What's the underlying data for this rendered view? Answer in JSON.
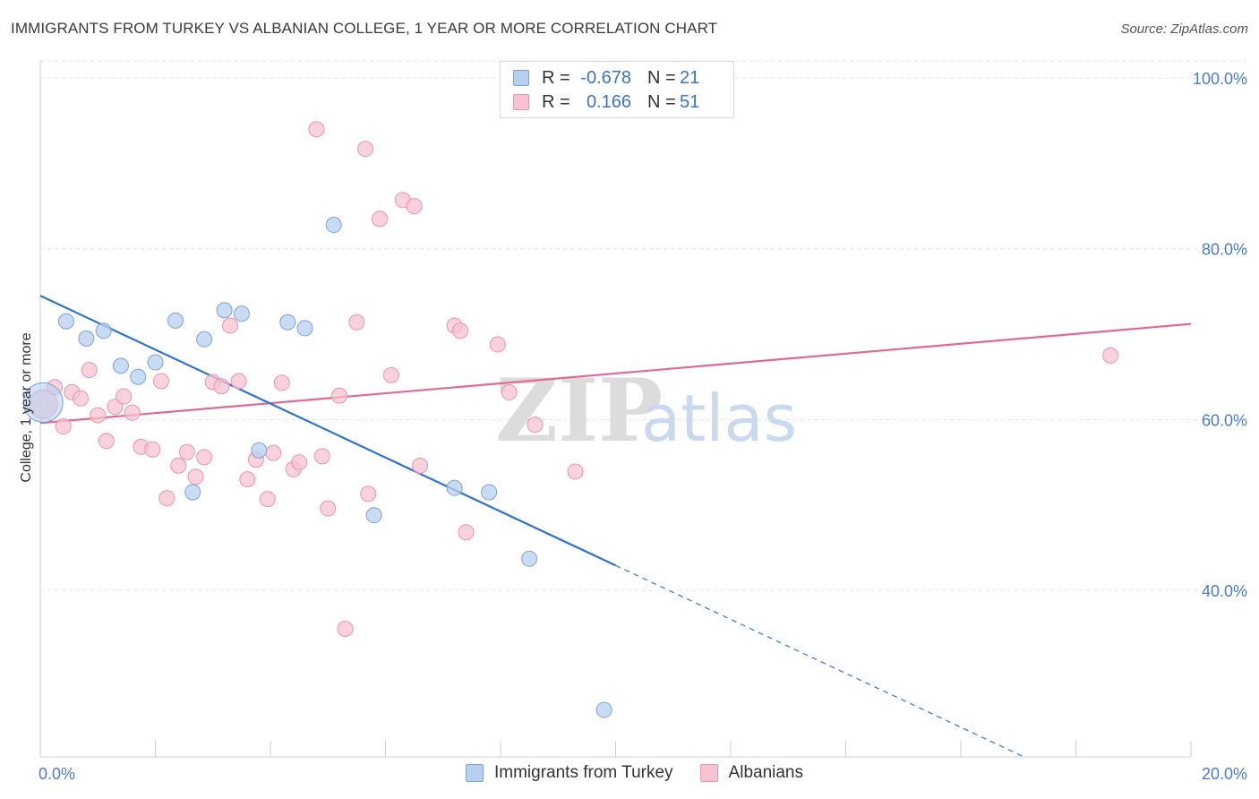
{
  "header": {
    "title": "IMMIGRANTS FROM TURKEY VS ALBANIAN COLLEGE, 1 YEAR OR MORE CORRELATION CHART",
    "source": "Source: ZipAtlas.com"
  },
  "legend": {
    "rows": [
      {
        "r_label": "R =",
        "r_value": "-0.678",
        "n_label": "N =",
        "n_value": "21"
      },
      {
        "r_label": "R =",
        "r_value": "0.166",
        "n_label": "N =",
        "n_value": "51"
      }
    ]
  },
  "bottom_legend": {
    "items": [
      {
        "label": "Immigrants from Turkey"
      },
      {
        "label": "Albanians"
      }
    ]
  },
  "watermark": {
    "zip": "ZIP",
    "atlas": "atlas"
  },
  "colors": {
    "blue_fill": "#b8d0f0",
    "blue_stroke": "#7aa3dc",
    "blue_line": "#2f74d0",
    "pink_fill": "#f7c3d2",
    "pink_stroke": "#eb94ae",
    "pink_line": "#e06a92"
  },
  "chart_data": {
    "type": "scatter",
    "title": "IMMIGRANTS FROM TURKEY VS ALBANIAN COLLEGE, 1 YEAR OR MORE CORRELATION CHART",
    "xlabel": "",
    "ylabel": "College, 1 year or more",
    "xlim": [
      0,
      20
    ],
    "ylim": [
      20.5,
      102
    ],
    "x_tick_labels": [
      "0.0%",
      "20.0%"
    ],
    "y_ticks": [
      40,
      60,
      80,
      100
    ],
    "y_tick_labels": [
      "40.0%",
      "60.0%",
      "80.0%",
      "100.0%"
    ],
    "grid": true,
    "series": [
      {
        "name": "Immigrants from Turkey",
        "r": -0.678,
        "n": 21,
        "points": [
          {
            "x": 0.05,
            "y": 62.0,
            "big": true
          },
          {
            "x": 0.45,
            "y": 71.5
          },
          {
            "x": 0.8,
            "y": 69.5
          },
          {
            "x": 1.1,
            "y": 70.4
          },
          {
            "x": 1.4,
            "y": 66.3
          },
          {
            "x": 1.7,
            "y": 65.0
          },
          {
            "x": 2.0,
            "y": 66.7
          },
          {
            "x": 2.35,
            "y": 71.6
          },
          {
            "x": 2.85,
            "y": 69.4
          },
          {
            "x": 3.2,
            "y": 72.8
          },
          {
            "x": 3.5,
            "y": 72.4
          },
          {
            "x": 4.3,
            "y": 71.4
          },
          {
            "x": 4.6,
            "y": 70.7
          },
          {
            "x": 5.1,
            "y": 82.8
          },
          {
            "x": 2.65,
            "y": 51.5
          },
          {
            "x": 3.8,
            "y": 56.4
          },
          {
            "x": 5.8,
            "y": 48.8
          },
          {
            "x": 7.2,
            "y": 52.0
          },
          {
            "x": 7.8,
            "y": 51.5
          },
          {
            "x": 8.5,
            "y": 43.7
          },
          {
            "x": 9.8,
            "y": 26.0
          }
        ],
        "trend": {
          "x0": 0,
          "y0": 74.5,
          "x_solid_end": 10.0,
          "x1": 17.1,
          "y1": 20.5
        }
      },
      {
        "name": "Albanians",
        "r": 0.166,
        "n": 51,
        "points": [
          {
            "x": 0.05,
            "y": 61.8,
            "big": true
          },
          {
            "x": 0.25,
            "y": 63.8
          },
          {
            "x": 0.4,
            "y": 59.2
          },
          {
            "x": 0.55,
            "y": 63.2
          },
          {
            "x": 0.7,
            "y": 62.5
          },
          {
            "x": 0.85,
            "y": 65.8
          },
          {
            "x": 1.0,
            "y": 60.5
          },
          {
            "x": 1.15,
            "y": 57.5
          },
          {
            "x": 1.3,
            "y": 61.5
          },
          {
            "x": 1.45,
            "y": 62.7
          },
          {
            "x": 1.6,
            "y": 60.8
          },
          {
            "x": 1.75,
            "y": 56.8
          },
          {
            "x": 1.95,
            "y": 56.5
          },
          {
            "x": 2.1,
            "y": 64.5
          },
          {
            "x": 2.2,
            "y": 50.8
          },
          {
            "x": 2.4,
            "y": 54.6
          },
          {
            "x": 2.55,
            "y": 56.2
          },
          {
            "x": 2.7,
            "y": 53.3
          },
          {
            "x": 2.85,
            "y": 55.6
          },
          {
            "x": 3.0,
            "y": 64.4
          },
          {
            "x": 3.15,
            "y": 63.9
          },
          {
            "x": 3.3,
            "y": 71.0
          },
          {
            "x": 3.45,
            "y": 64.5
          },
          {
            "x": 3.6,
            "y": 53.0
          },
          {
            "x": 3.75,
            "y": 55.3
          },
          {
            "x": 3.95,
            "y": 50.7
          },
          {
            "x": 4.05,
            "y": 56.1
          },
          {
            "x": 4.2,
            "y": 64.3
          },
          {
            "x": 4.4,
            "y": 54.2
          },
          {
            "x": 4.5,
            "y": 55.0
          },
          {
            "x": 4.8,
            "y": 94.0
          },
          {
            "x": 4.9,
            "y": 55.7
          },
          {
            "x": 5.0,
            "y": 49.6
          },
          {
            "x": 5.2,
            "y": 62.8
          },
          {
            "x": 5.3,
            "y": 35.5
          },
          {
            "x": 5.5,
            "y": 71.4
          },
          {
            "x": 5.65,
            "y": 91.7
          },
          {
            "x": 5.7,
            "y": 51.3
          },
          {
            "x": 5.9,
            "y": 83.5
          },
          {
            "x": 6.1,
            "y": 65.2
          },
          {
            "x": 6.3,
            "y": 85.7
          },
          {
            "x": 6.5,
            "y": 85.0
          },
          {
            "x": 6.6,
            "y": 54.6
          },
          {
            "x": 7.2,
            "y": 71.0
          },
          {
            "x": 7.3,
            "y": 70.4
          },
          {
            "x": 7.4,
            "y": 46.8
          },
          {
            "x": 7.95,
            "y": 68.8
          },
          {
            "x": 8.15,
            "y": 63.2
          },
          {
            "x": 8.6,
            "y": 59.4
          },
          {
            "x": 9.3,
            "y": 53.9
          },
          {
            "x": 18.6,
            "y": 67.5
          }
        ],
        "trend": {
          "x0": 0,
          "y0": 59.6,
          "x1": 20,
          "y1": 71.2
        }
      }
    ]
  }
}
